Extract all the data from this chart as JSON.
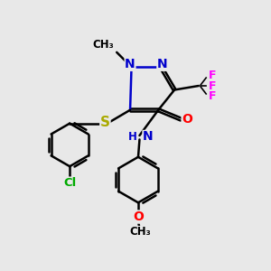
{
  "background_color": "#e8e8e8",
  "atom_colors": {
    "C": "#000000",
    "N": "#0000cc",
    "O": "#ff0000",
    "S": "#aaaa00",
    "F": "#ff00ff",
    "Cl": "#00aa00",
    "H": "#0000cc"
  },
  "bond_color": "#000000",
  "bond_width": 1.8,
  "figsize": [
    3.0,
    3.0
  ],
  "dpi": 100
}
